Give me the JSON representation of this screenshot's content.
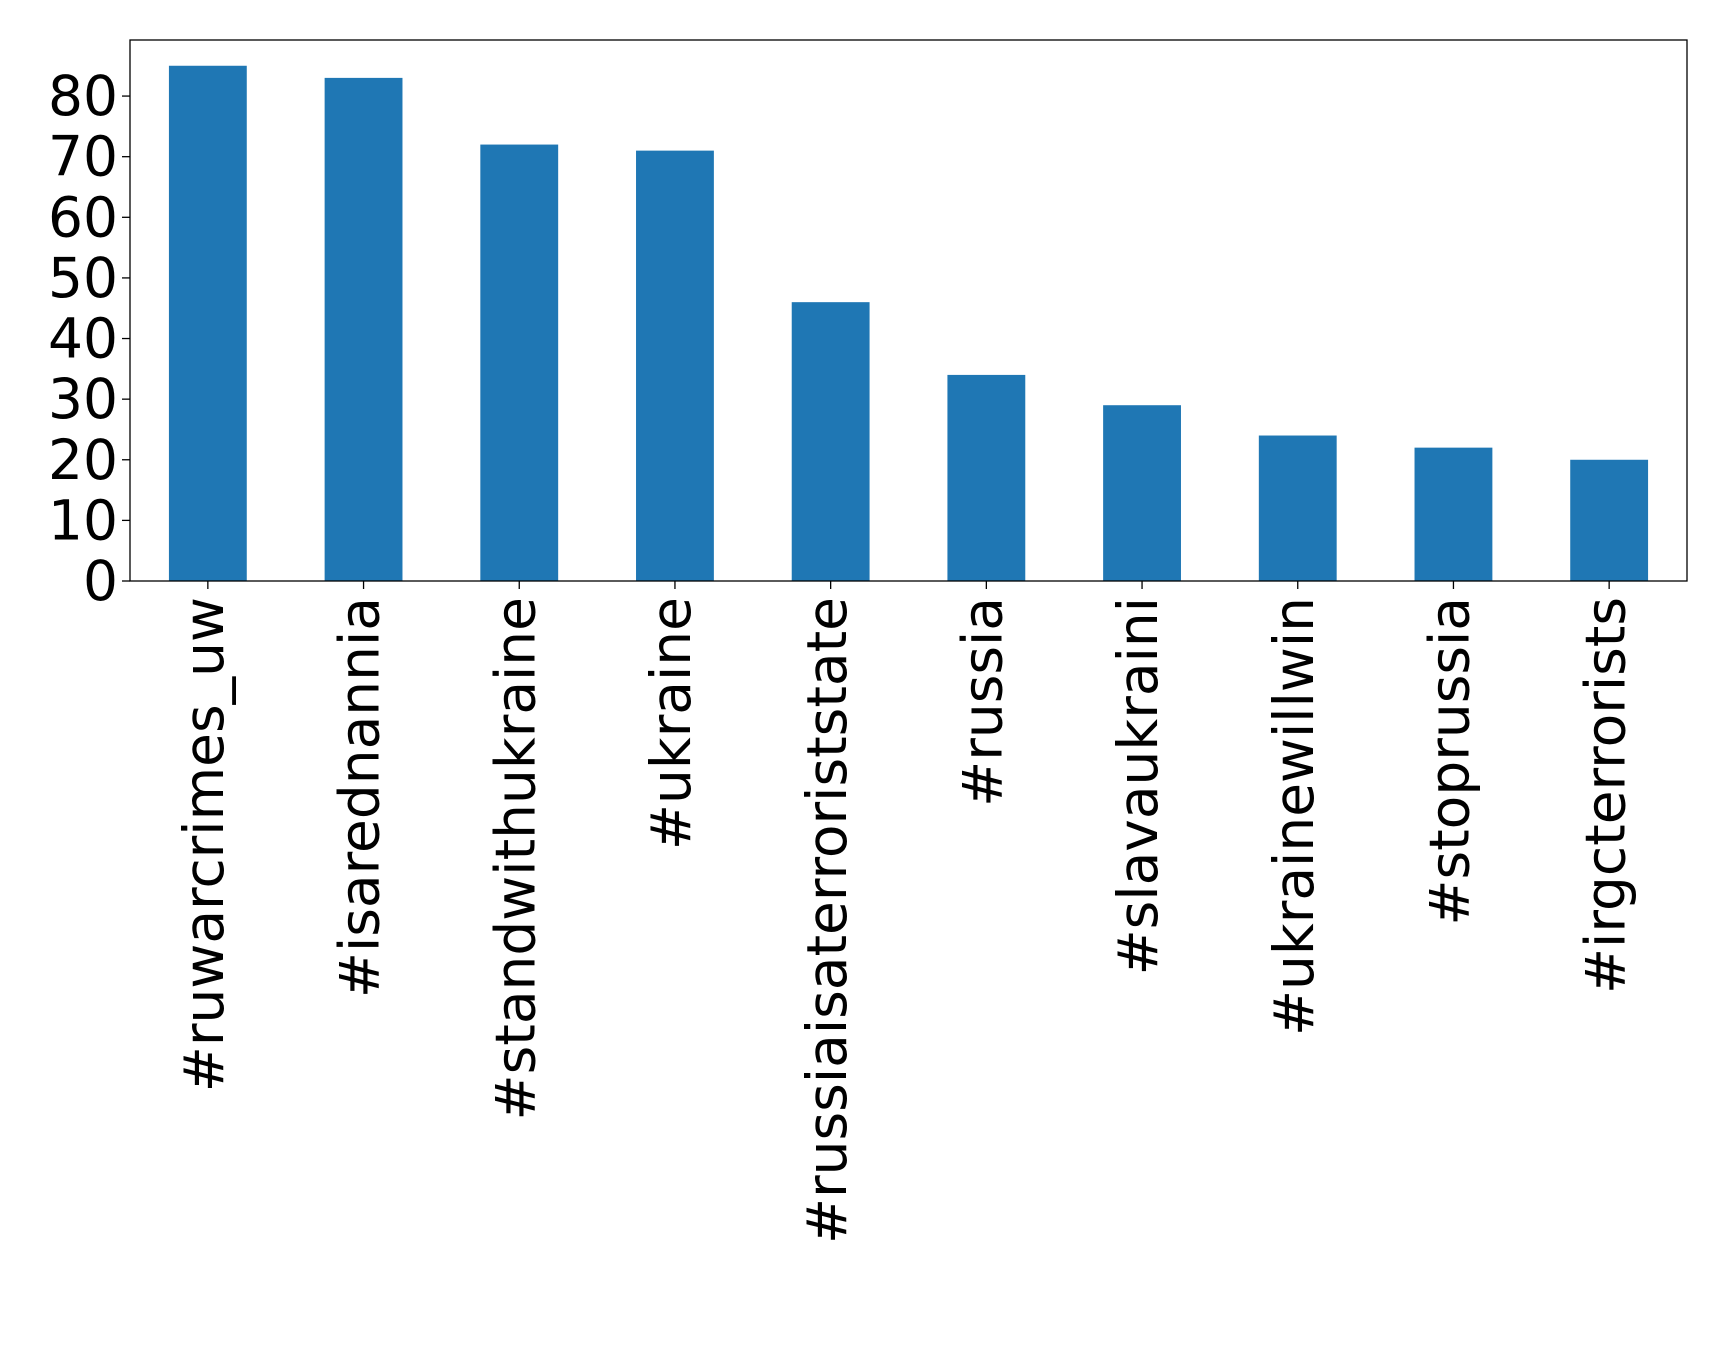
{
  "chart_data": {
    "type": "bar",
    "categories": [
      "#ruwarcrimes_uw",
      "#isarednannia",
      "#standwithukraine",
      "#ukraine",
      "#russiaisaterroriststate",
      "#russia",
      "#slavaukraini",
      "#ukrainewillwin",
      "#stoprussia",
      "#irgcterrorists"
    ],
    "values": [
      85,
      83,
      72,
      71,
      46,
      34,
      29,
      24,
      22,
      20
    ],
    "color": "#1f77b4",
    "ylim": [
      0,
      89.25
    ],
    "yticks": [
      0,
      10,
      20,
      30,
      40,
      50,
      60,
      70,
      80
    ],
    "grid": false
  }
}
